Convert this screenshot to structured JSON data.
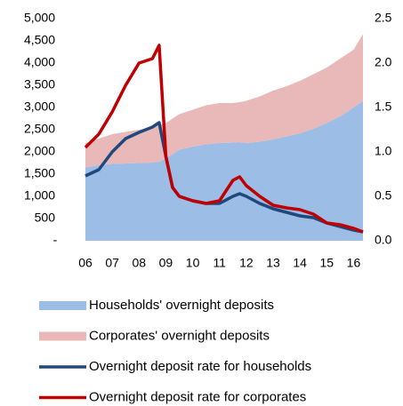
{
  "chart_data": {
    "type": "combo",
    "x": [
      2006,
      2006.5,
      2007,
      2007.5,
      2008,
      2008.5,
      2008.75,
      2009,
      2009.25,
      2009.5,
      2010,
      2010.5,
      2011,
      2011.5,
      2011.75,
      2012,
      2012.5,
      2013,
      2013.5,
      2014,
      2014.5,
      2015,
      2015.5,
      2016,
      2016.35
    ],
    "series": [
      {
        "name": "Households' overnight deposits",
        "kind": "area",
        "color": "#9bbde6",
        "values": [
          1650,
          1700,
          1730,
          1740,
          1750,
          1760,
          1780,
          1850,
          1950,
          2050,
          2120,
          2170,
          2200,
          2210,
          2220,
          2200,
          2230,
          2280,
          2350,
          2420,
          2520,
          2650,
          2800,
          3000,
          3150
        ]
      },
      {
        "name": "Corporates' overnight deposits",
        "kind": "area",
        "color": "#e8b9b8",
        "values": [
          550,
          600,
          670,
          710,
          750,
          790,
          820,
          800,
          800,
          800,
          830,
          880,
          900,
          890,
          900,
          950,
          1020,
          1100,
          1130,
          1180,
          1230,
          1250,
          1300,
          1300,
          1500
        ]
      },
      {
        "name": "Overnight deposit rate for households",
        "kind": "line",
        "axis": "y2",
        "color": "#1f497d",
        "values": [
          0.73,
          0.8,
          1.0,
          1.15,
          1.22,
          1.28,
          1.33,
          0.95,
          0.6,
          0.5,
          0.45,
          0.42,
          0.42,
          0.5,
          0.53,
          0.5,
          0.42,
          0.36,
          0.32,
          0.28,
          0.26,
          0.2,
          0.16,
          0.12,
          0.1
        ]
      },
      {
        "name": "Overnight deposit rate for corporates",
        "kind": "line",
        "axis": "y2",
        "color": "#c00000",
        "values": [
          1.05,
          1.2,
          1.45,
          1.75,
          2.0,
          2.05,
          2.2,
          0.95,
          0.6,
          0.5,
          0.45,
          0.42,
          0.45,
          0.68,
          0.72,
          0.62,
          0.5,
          0.4,
          0.37,
          0.35,
          0.3,
          0.2,
          0.18,
          0.14,
          0.1
        ]
      }
    ],
    "xlim": [
      2006,
      2016.35
    ],
    "xticks": [
      {
        "value": 2006,
        "label": "06"
      },
      {
        "value": 2007,
        "label": "07"
      },
      {
        "value": 2008,
        "label": "08"
      },
      {
        "value": 2009,
        "label": "09"
      },
      {
        "value": 2010,
        "label": "10"
      },
      {
        "value": 2011,
        "label": "11"
      },
      {
        "value": 2012,
        "label": "12"
      },
      {
        "value": 2013,
        "label": "13"
      },
      {
        "value": 2014,
        "label": "14"
      },
      {
        "value": 2015,
        "label": "15"
      },
      {
        "value": 2016,
        "label": "16"
      }
    ],
    "ylim": [
      0,
      5000
    ],
    "yticks": [
      {
        "value": 0,
        "label": "-"
      },
      500,
      {
        "value": 1000,
        "label": "1,000"
      },
      {
        "value": 1500,
        "label": "1,500"
      },
      {
        "value": 2000,
        "label": "2,000"
      },
      {
        "value": 2500,
        "label": "2,500"
      },
      {
        "value": 3000,
        "label": "3,000"
      },
      {
        "value": 3500,
        "label": "3,500"
      },
      {
        "value": 4000,
        "label": "4,000"
      },
      {
        "value": 4500,
        "label": "4,500"
      },
      {
        "value": 5000,
        "label": "5,000"
      }
    ],
    "y2lim": [
      0,
      2.5
    ],
    "y2ticks": [
      {
        "value": 0,
        "label": "0.0"
      },
      0.5,
      {
        "value": 1,
        "label": "1.0"
      },
      1.5,
      {
        "value": 2,
        "label": "2.0"
      },
      2.5
    ]
  }
}
